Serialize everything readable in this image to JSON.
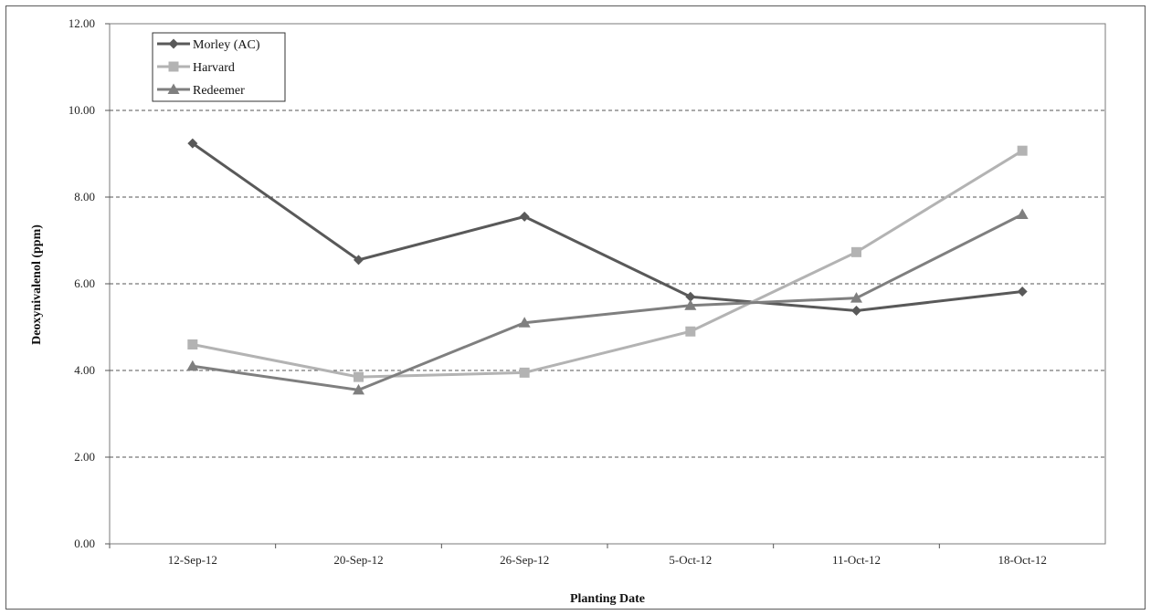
{
  "chart_data": {
    "type": "line",
    "title": "",
    "xlabel": "Planting Date",
    "ylabel": "Deoxynivalenol (ppm)",
    "ylim": [
      0,
      12
    ],
    "yticks": [
      "0.00",
      "2.00",
      "4.00",
      "6.00",
      "8.00",
      "10.00",
      "12.00"
    ],
    "categories": [
      "12-Sep-12",
      "20-Sep-12",
      "26-Sep-12",
      "5-Oct-12",
      "11-Oct-12",
      "18-Oct-12"
    ],
    "grid": "horizontal dashed",
    "legend_position": "top-left",
    "series": [
      {
        "name": "Morley (AC)",
        "marker": "diamond",
        "color": "#595959",
        "values": [
          9.24,
          6.55,
          7.55,
          5.7,
          5.38,
          5.82
        ]
      },
      {
        "name": "Harvard",
        "marker": "square",
        "color": "#b3b3b3",
        "values": [
          4.6,
          3.85,
          3.95,
          4.9,
          6.73,
          9.07
        ]
      },
      {
        "name": "Redeemer",
        "marker": "triangle",
        "color": "#7f7f7f",
        "values": [
          4.1,
          3.55,
          5.1,
          5.5,
          5.67,
          7.6
        ]
      }
    ]
  }
}
